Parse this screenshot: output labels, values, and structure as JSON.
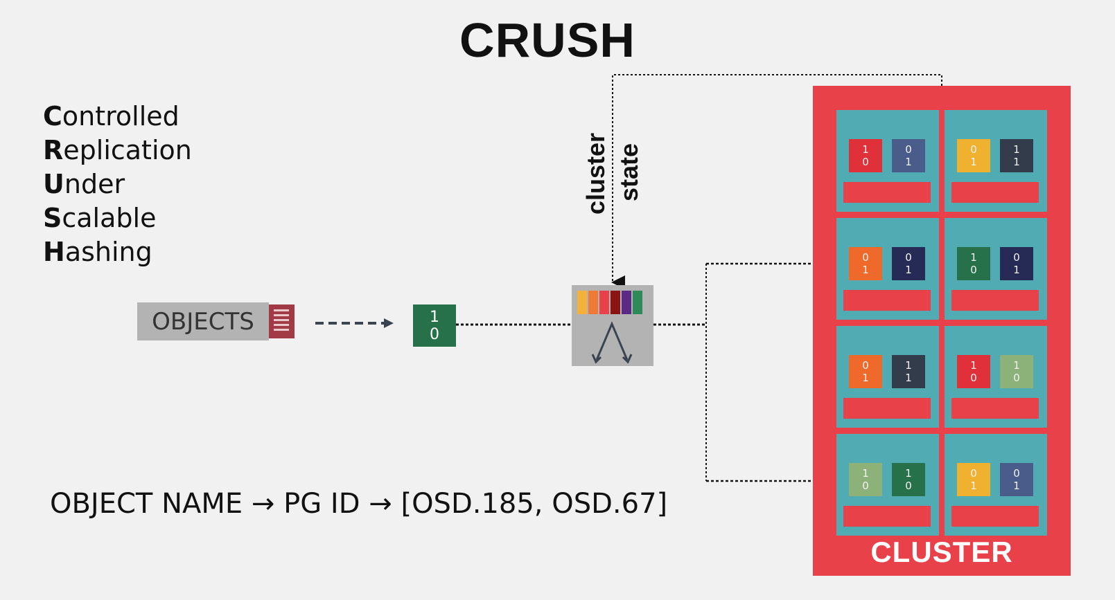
{
  "title": "CRUSH",
  "acronym": [
    {
      "initial": "C",
      "rest": "ontrolled"
    },
    {
      "initial": "R",
      "rest": "eplication"
    },
    {
      "initial": "U",
      "rest": "nder"
    },
    {
      "initial": "S",
      "rest": "calable"
    },
    {
      "initial": "H",
      "rest": "ashing"
    }
  ],
  "objects_label": "OBJECTS",
  "pg_bits": [
    "1",
    "0"
  ],
  "cluster_state_label": [
    "cluster",
    "state"
  ],
  "formula": "OBJECT NAME → PG ID → [OSD.185, OSD.67]",
  "cluster_label": "CLUSTER",
  "colors": {
    "cluster": "#e8414a",
    "host": "#51abb2",
    "pg": "#27714a",
    "object_icon": "#a23a45",
    "function_box": "#b3b3b3",
    "state_bars": [
      "#f4b23a",
      "#ee7a36",
      "#e8414a",
      "#8b1414",
      "#5a2a84",
      "#2e8b57"
    ]
  },
  "hosts": [
    {
      "chips": [
        {
          "bits": [
            "1",
            "0"
          ],
          "color": "#e0303a"
        },
        {
          "bits": [
            "0",
            "1"
          ],
          "color": "#4a5d8a"
        }
      ]
    },
    {
      "chips": [
        {
          "bits": [
            "0",
            "1"
          ],
          "color": "#f0b030"
        },
        {
          "bits": [
            "1",
            "1"
          ],
          "color": "#333c4a"
        }
      ]
    },
    {
      "chips": [
        {
          "bits": [
            "0",
            "1"
          ],
          "color": "#ef6a2a"
        },
        {
          "bits": [
            "0",
            "1"
          ],
          "color": "#252b55"
        }
      ]
    },
    {
      "chips": [
        {
          "bits": [
            "1",
            "0"
          ],
          "color": "#27714a"
        },
        {
          "bits": [
            "0",
            "1"
          ],
          "color": "#252b55"
        }
      ]
    },
    {
      "chips": [
        {
          "bits": [
            "0",
            "1"
          ],
          "color": "#ef6a2a"
        },
        {
          "bits": [
            "1",
            "1"
          ],
          "color": "#333c4a"
        }
      ]
    },
    {
      "chips": [
        {
          "bits": [
            "1",
            "0"
          ],
          "color": "#e0303a"
        },
        {
          "bits": [
            "1",
            "0"
          ],
          "color": "#8cb27a"
        }
      ]
    },
    {
      "chips": [
        {
          "bits": [
            "1",
            "0"
          ],
          "color": "#8cb27a"
        },
        {
          "bits": [
            "1",
            "0"
          ],
          "color": "#27714a"
        }
      ]
    },
    {
      "chips": [
        {
          "bits": [
            "0",
            "1"
          ],
          "color": "#f0b030"
        },
        {
          "bits": [
            "0",
            "1"
          ],
          "color": "#4a5d8a"
        }
      ]
    }
  ]
}
